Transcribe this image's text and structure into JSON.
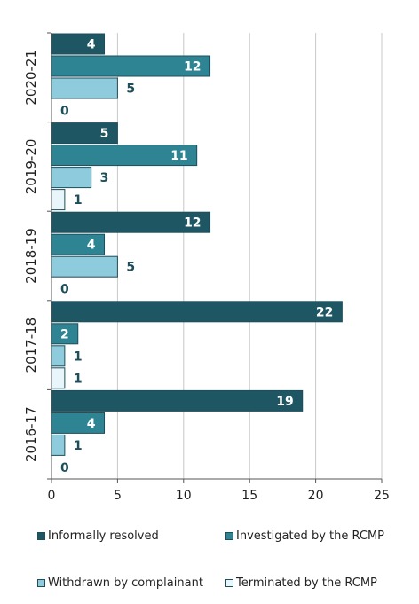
{
  "chart_data": {
    "type": "bar",
    "orientation": "horizontal",
    "categories": [
      "2020-21",
      "2019-20",
      "2018-19",
      "2017-18",
      "2016-17"
    ],
    "series": [
      {
        "name": "Informally resolved",
        "color": "#1e5664",
        "label_color": "#ffffff",
        "values": [
          4,
          5,
          12,
          22,
          19
        ]
      },
      {
        "name": "Investigated by the RCMP",
        "color": "#2f8494",
        "label_color": "#ffffff",
        "values": [
          12,
          11,
          4,
          2,
          4
        ]
      },
      {
        "name": "Withdrawn by complainant",
        "color": "#8ecbdc",
        "label_color": "#1e4e5a",
        "values": [
          5,
          3,
          5,
          1,
          1
        ]
      },
      {
        "name": "Terminated by the RCMP",
        "color": "#e8f5fa",
        "label_color": "#1e4e5a",
        "values": [
          0,
          1,
          0,
          1,
          0
        ]
      }
    ],
    "xlim": [
      0,
      25
    ],
    "xticks": [
      "0",
      "5",
      "10",
      "15",
      "20",
      "25"
    ],
    "grid": true,
    "legend_position": "bottom"
  }
}
